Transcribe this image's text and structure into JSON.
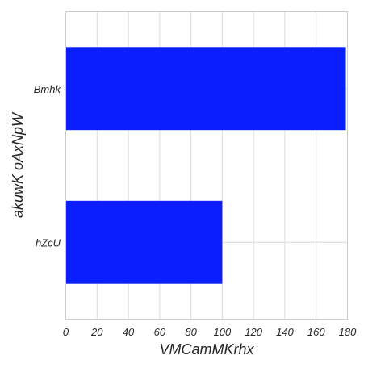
{
  "chart_data": {
    "type": "bar",
    "orientation": "horizontal",
    "categories": [
      "Bmhk",
      "hZcU"
    ],
    "values": [
      179,
      100
    ],
    "xlabel": "VMCamMKrhx",
    "ylabel": "akuwK oAxNpW",
    "xlim": [
      0,
      180
    ],
    "x_ticks": [
      0,
      20,
      40,
      60,
      80,
      100,
      120,
      140,
      160,
      180
    ],
    "grid": true,
    "bar_color": "#0a1eff",
    "grid_color": "#d9d9d9"
  }
}
